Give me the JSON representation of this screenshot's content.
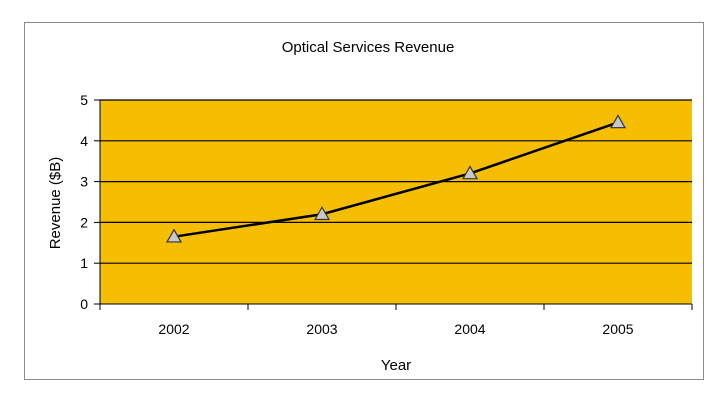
{
  "chart_data": {
    "type": "line",
    "title": "Optical Services Revenue",
    "xlabel": "Year",
    "ylabel": "Revenue ($B)",
    "categories": [
      "2002",
      "2003",
      "2004",
      "2005"
    ],
    "series": [
      {
        "values": [
          1.65,
          2.2,
          3.2,
          4.45
        ],
        "marker": "triangle"
      }
    ],
    "ylim": [
      0,
      5
    ],
    "yticks": [
      "0",
      "1",
      "2",
      "3",
      "4",
      "5"
    ],
    "grid": true,
    "legend": "none",
    "colors": {
      "plot_background": "#F5BE00",
      "gridline": "#000000",
      "line": "#000000",
      "marker_fill": "#C8C8C8",
      "marker_stroke": "#333333"
    }
  }
}
